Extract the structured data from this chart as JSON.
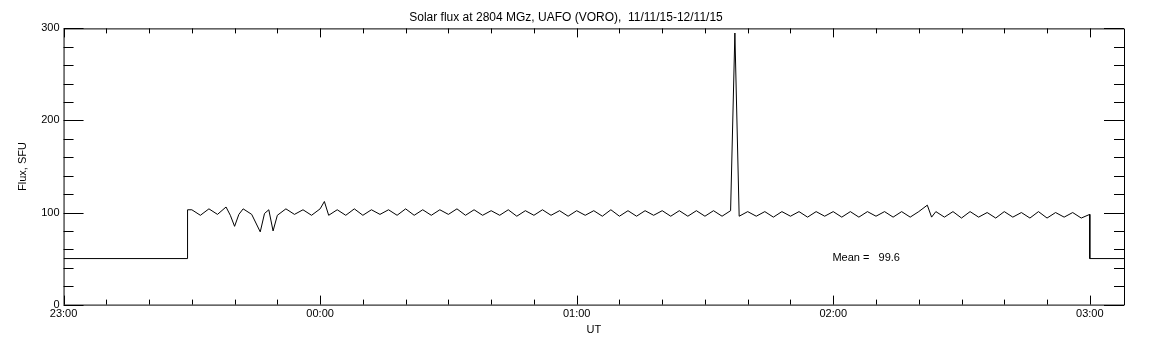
{
  "chart_data": {
    "type": "line",
    "title": "Solar flux at 2804 MGz, UAFO (VORO),  11/11/15-12/11/15",
    "xlabel": "UT",
    "ylabel": "Flux, SFU",
    "annotations": [
      "Mean =   99.6"
    ],
    "xlim": [
      "--11-11T23:00",
      "--11-12T03:08"
    ],
    "ylim": [
      0,
      300
    ],
    "grid": false,
    "legend": false,
    "marker": "none",
    "line_style": "solid",
    "xticks": [
      {
        "value": "--11-11T23:00",
        "label": "23:00"
      },
      {
        "value": "--11-11T23:10",
        "label": null
      },
      {
        "value": "--11-11T23:20",
        "label": null
      },
      {
        "value": "--11-11T23:30",
        "label": null
      },
      {
        "value": "--11-11T23:40",
        "label": null
      },
      {
        "value": "--11-11T23:50",
        "label": null
      },
      {
        "value": "--11-12T00:00",
        "label": "00:00"
      },
      {
        "value": "--11-12T00:10",
        "label": null
      },
      {
        "value": "--11-12T00:20",
        "label": null
      },
      {
        "value": "--11-12T00:30",
        "label": null
      },
      {
        "value": "--11-12T00:40",
        "label": null
      },
      {
        "value": "--11-12T00:50",
        "label": null
      },
      {
        "value": "--11-12T01:00",
        "label": "01:00"
      },
      {
        "value": "--11-12T01:10",
        "label": null
      },
      {
        "value": "--11-12T01:20",
        "label": null
      },
      {
        "value": "--11-12T01:30",
        "label": null
      },
      {
        "value": "--11-12T01:40",
        "label": null
      },
      {
        "value": "--11-12T01:50",
        "label": null
      },
      {
        "value": "--11-12T02:00",
        "label": "02:00"
      },
      {
        "value": "--11-12T02:10",
        "label": null
      },
      {
        "value": "--11-12T02:20",
        "label": null
      },
      {
        "value": "--11-12T02:30",
        "label": null
      },
      {
        "value": "--11-12T02:40",
        "label": null
      },
      {
        "value": "--11-12T02:50",
        "label": null
      },
      {
        "value": "--11-12T03:00",
        "label": "03:00"
      }
    ],
    "yticks": [
      0,
      {
        "value": 20,
        "label": null
      },
      {
        "value": 40,
        "label": null
      },
      {
        "value": 60,
        "label": null
      },
      {
        "value": 80,
        "label": null
      },
      100,
      {
        "value": 120,
        "label": null
      },
      {
        "value": 140,
        "label": null
      },
      {
        "value": 160,
        "label": null
      },
      {
        "value": 180,
        "label": null
      },
      200,
      {
        "value": 220,
        "label": null
      },
      {
        "value": 240,
        "label": null
      },
      {
        "value": 260,
        "label": null
      },
      {
        "value": 280,
        "label": null
      },
      300
    ],
    "series": [
      {
        "color": "#000000",
        "x": [
          "--11-11T23:00",
          "--11-11T23:29",
          "--11-11T23:29",
          "--11-11T23:30",
          "--11-11T23:32",
          "--11-11T23:34",
          "--11-11T23:36",
          "--11-11T23:38",
          "--11-11T23:39",
          "--11-11T23:40",
          "--11-11T23:41",
          "--11-11T23:42",
          "--11-11T23:44",
          "--11-11T23:46",
          "--11-11T23:47",
          "--11-11T23:48",
          "--11-11T23:49",
          "--11-11T23:50",
          "--11-11T23:52",
          "--11-11T23:54",
          "--11-11T23:56",
          "--11-11T23:58",
          "--11-12T00:00",
          "--11-12T00:01",
          "--11-12T00:02",
          "--11-12T00:04",
          "--11-12T00:06",
          "--11-12T00:08",
          "--11-12T00:10",
          "--11-12T00:12",
          "--11-12T00:14",
          "--11-12T00:16",
          "--11-12T00:18",
          "--11-12T00:20",
          "--11-12T00:22",
          "--11-12T00:24",
          "--11-12T00:26",
          "--11-12T00:28",
          "--11-12T00:30",
          "--11-12T00:32",
          "--11-12T00:34",
          "--11-12T00:36",
          "--11-12T00:38",
          "--11-12T00:40",
          "--11-12T00:42",
          "--11-12T00:44",
          "--11-12T00:46",
          "--11-12T00:48",
          "--11-12T00:50",
          "--11-12T00:52",
          "--11-12T00:54",
          "--11-12T00:56",
          "--11-12T00:58",
          "--11-12T01:00",
          "--11-12T01:02",
          "--11-12T01:04",
          "--11-12T01:06",
          "--11-12T01:08",
          "--11-12T01:10",
          "--11-12T01:12",
          "--11-12T01:14",
          "--11-12T01:16",
          "--11-12T01:18",
          "--11-12T01:20",
          "--11-12T01:22",
          "--11-12T01:24",
          "--11-12T01:26",
          "--11-12T01:28",
          "--11-12T01:30",
          "--11-12T01:32",
          "--11-12T01:34",
          "--11-12T01:36",
          "--11-12T01:37",
          "--11-12T01:38",
          "--11-12T01:40",
          "--11-12T01:42",
          "--11-12T01:44",
          "--11-12T01:46",
          "--11-12T01:48",
          "--11-12T01:50",
          "--11-12T01:52",
          "--11-12T01:54",
          "--11-12T01:56",
          "--11-12T01:58",
          "--11-12T02:00",
          "--11-12T02:02",
          "--11-12T02:04",
          "--11-12T02:06",
          "--11-12T02:08",
          "--11-12T02:10",
          "--11-12T02:12",
          "--11-12T02:14",
          "--11-12T02:16",
          "--11-12T02:18",
          "--11-12T02:20",
          "--11-12T02:22",
          "--11-12T02:23",
          "--11-12T02:24",
          "--11-12T02:26",
          "--11-12T02:28",
          "--11-12T02:30",
          "--11-12T02:32",
          "--11-12T02:34",
          "--11-12T02:36",
          "--11-12T02:38",
          "--11-12T02:40",
          "--11-12T02:42",
          "--11-12T02:44",
          "--11-12T02:46",
          "--11-12T02:48",
          "--11-12T02:50",
          "--11-12T02:52",
          "--11-12T02:54",
          "--11-12T02:56",
          "--11-12T02:58",
          "--11-12T03:00",
          "--11-12T03:00",
          "--11-12T03:08"
        ],
        "values": [
          50,
          50,
          103,
          103,
          97,
          104,
          98,
          106,
          97,
          85,
          98,
          104,
          98,
          79,
          99,
          103,
          80,
          97,
          104,
          98,
          103,
          97,
          104,
          112,
          97,
          103,
          97,
          104,
          97,
          103,
          98,
          103,
          97,
          104,
          97,
          103,
          97,
          103,
          98,
          104,
          97,
          103,
          97,
          102,
          97,
          103,
          96,
          102,
          97,
          103,
          97,
          102,
          96,
          102,
          97,
          102,
          96,
          103,
          96,
          102,
          96,
          102,
          97,
          102,
          96,
          102,
          96,
          102,
          96,
          102,
          96,
          102,
          295,
          96,
          101,
          96,
          101,
          95,
          101,
          96,
          101,
          95,
          101,
          96,
          101,
          95,
          101,
          95,
          101,
          96,
          101,
          95,
          101,
          95,
          101,
          108,
          95,
          101,
          95,
          101,
          94,
          101,
          95,
          100,
          94,
          101,
          95,
          100,
          94,
          101,
          94,
          100,
          95,
          100,
          94,
          98,
          50,
          50
        ]
      }
    ]
  }
}
